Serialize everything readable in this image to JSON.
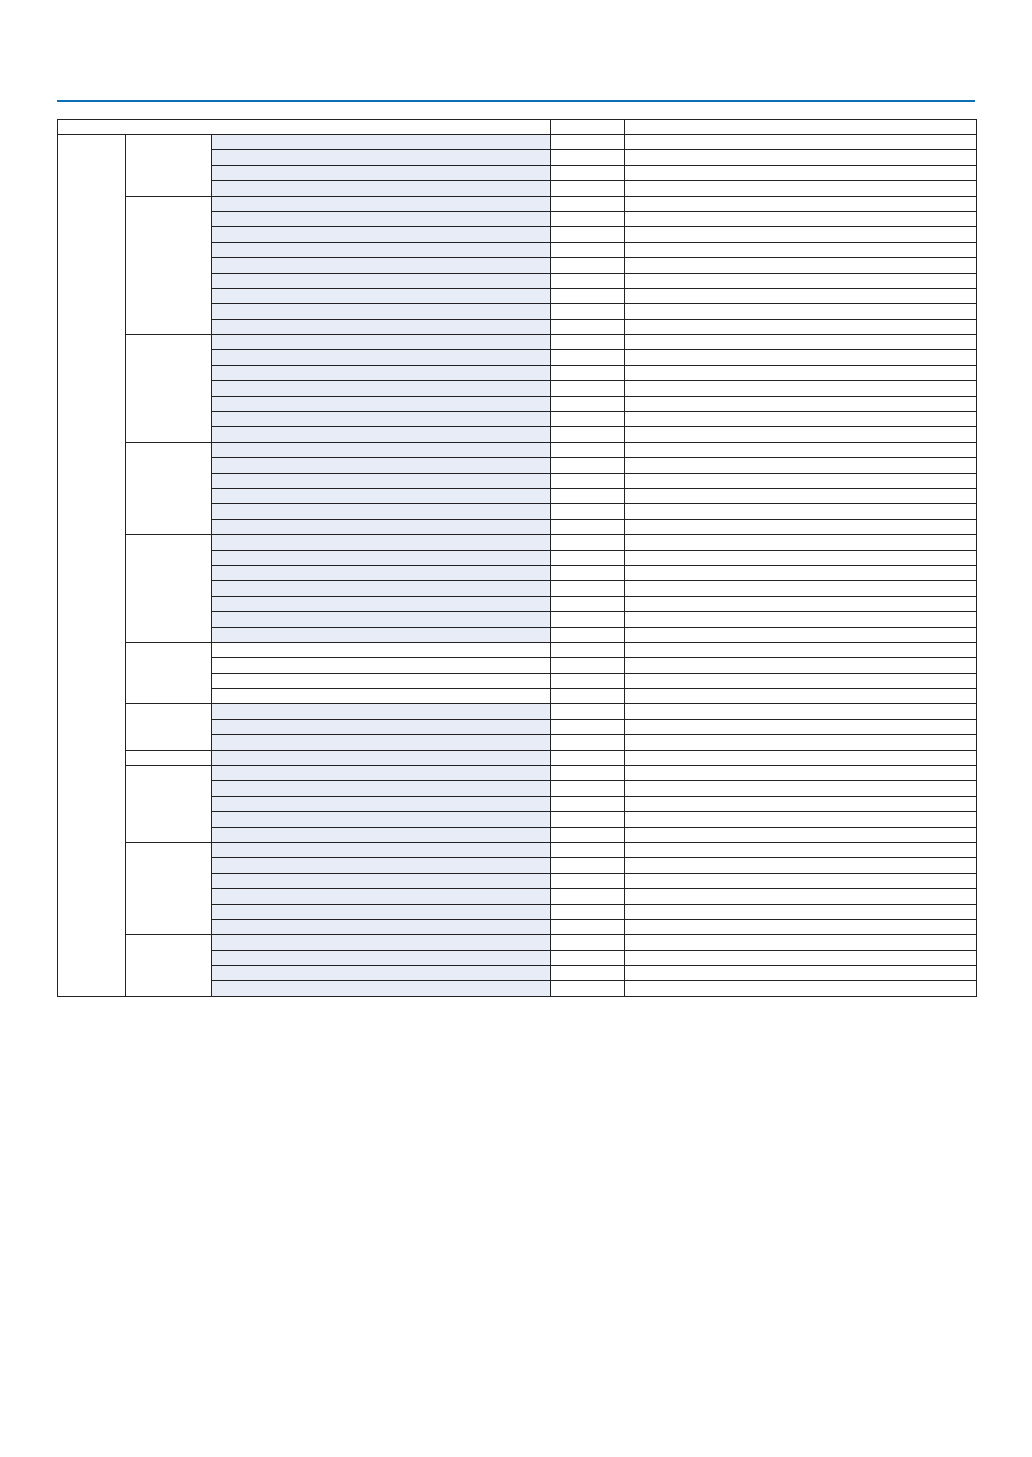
{
  "colors": {
    "header_rule": "#0a6fb5",
    "shaded_cell": "#e8ecf7",
    "border": "#222222"
  },
  "table": {
    "header": [
      "",
      "",
      ""
    ],
    "groups": [
      {
        "label": "",
        "rows": 4,
        "shaded": true
      },
      {
        "label": "",
        "rows": 9,
        "shaded": true
      },
      {
        "label": "",
        "rows": 7,
        "shaded": true
      },
      {
        "label": "",
        "rows": 6,
        "shaded": true
      },
      {
        "label": "",
        "rows": 7,
        "shaded": true
      },
      {
        "label": "",
        "rows": 4,
        "shaded": false
      },
      {
        "label": "",
        "rows": 3,
        "shaded": true
      },
      {
        "label": "",
        "rows": 1,
        "shaded": true
      },
      {
        "label": "",
        "rows": 5,
        "shaded": true
      },
      {
        "label": "",
        "rows": 6,
        "shaded": true
      },
      {
        "label": "",
        "rows": 4,
        "shaded": true
      }
    ]
  }
}
